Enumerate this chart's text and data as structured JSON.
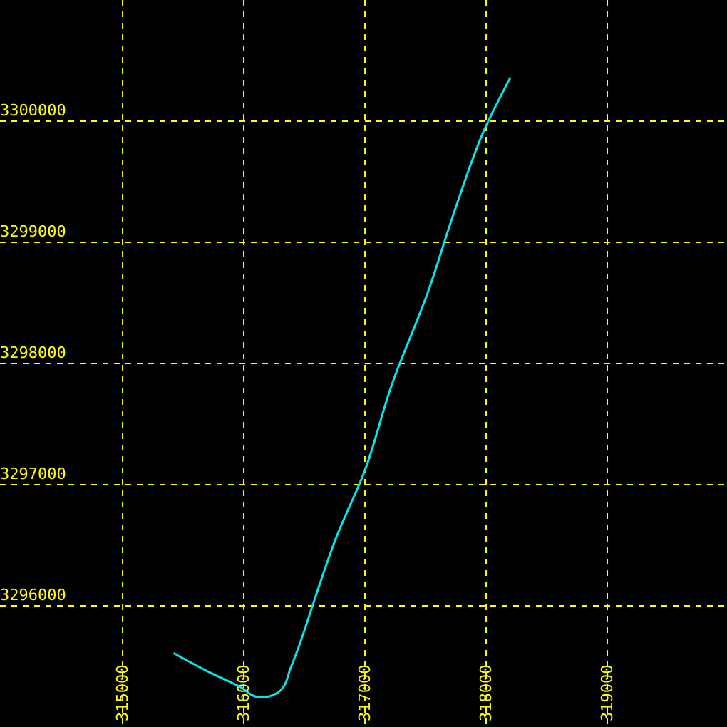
{
  "chart_data": {
    "type": "line",
    "x": [
      315420,
      315700,
      315990,
      316100,
      316200,
      316320,
      316380,
      316460,
      316580,
      316750,
      317000,
      317220,
      317520,
      317750,
      317990,
      318200
    ],
    "values": [
      3295610,
      3295460,
      3295320,
      3295250,
      3295250,
      3295320,
      3295470,
      3295680,
      3296040,
      3296530,
      3297120,
      3297820,
      3298590,
      3299290,
      3299940,
      3300360
    ],
    "color": "#00e8e8",
    "xlim": [
      313988,
      319988
    ],
    "ylim": [
      3295000,
      3301000
    ],
    "xticks": [
      315000,
      316000,
      317000,
      318000,
      319000
    ],
    "yticks": [
      3296000,
      3297000,
      3298000,
      3299000,
      3300000
    ],
    "grid": true,
    "line_style": "solid",
    "marker": "none"
  }
}
